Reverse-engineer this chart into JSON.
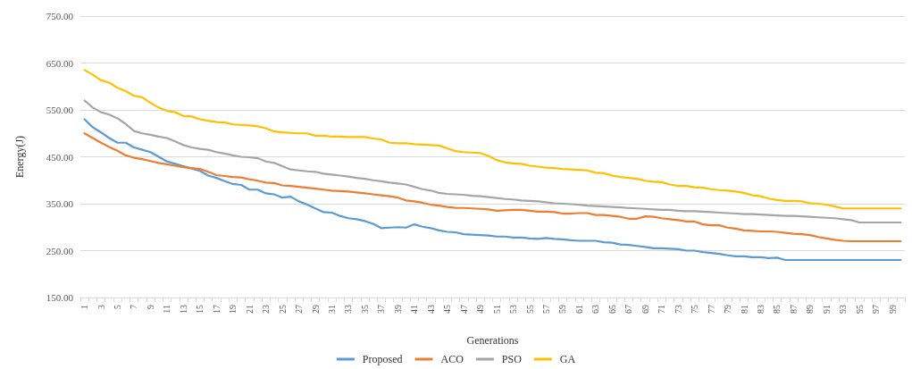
{
  "chart_data": {
    "type": "line",
    "xlabel": "Generations",
    "ylabel": "Energy(J)",
    "categories": [
      "1",
      null,
      "3",
      null,
      "5",
      null,
      "7",
      null,
      "9",
      null,
      "11",
      null,
      "13",
      null,
      "15",
      null,
      "17",
      null,
      "19",
      null,
      "21",
      null,
      "23",
      null,
      "25",
      null,
      "27",
      null,
      "29",
      null,
      "31",
      null,
      "33",
      null,
      "35",
      null,
      "37",
      null,
      "39",
      null,
      "41",
      null,
      "43",
      null,
      "45",
      null,
      "47",
      null,
      "49",
      null,
      "51",
      null,
      "53",
      null,
      "55",
      null,
      "57",
      null,
      "59",
      null,
      "61",
      null,
      "63",
      null,
      "65",
      null,
      "67",
      null,
      "69",
      null,
      "71",
      null,
      "73",
      null,
      "75",
      null,
      "77",
      null,
      "79",
      null,
      "81",
      null,
      "83",
      null,
      "85",
      null,
      "87",
      null,
      "89",
      null,
      "91",
      null,
      "93",
      null,
      "95",
      null,
      "97",
      null,
      "99",
      null
    ],
    "series": [
      {
        "name": "Proposed",
        "color": "#5b9bd5",
        "values": [
          530,
          513,
          502,
          490,
          480,
          480,
          470,
          465,
          460,
          450,
          440,
          435,
          430,
          425,
          420,
          410,
          405,
          398,
          392,
          390,
          380,
          380,
          372,
          370,
          363,
          365,
          355,
          348,
          340,
          332,
          331,
          324,
          319,
          317,
          313,
          307,
          298,
          299,
          300,
          299,
          306,
          301,
          298,
          293,
          290,
          289,
          285,
          284,
          283,
          282,
          280,
          280,
          278,
          278,
          276,
          275,
          277,
          275,
          274,
          272,
          271,
          271,
          271,
          268,
          267,
          263,
          262,
          260,
          258,
          255,
          255,
          254,
          253,
          250,
          250,
          247,
          245,
          243,
          240,
          238,
          238,
          236,
          236,
          234,
          235,
          230,
          230,
          230,
          230,
          230,
          230,
          230,
          230,
          230,
          230,
          230,
          230,
          230,
          230,
          230
        ]
      },
      {
        "name": "ACO",
        "color": "#ed7d31",
        "values": [
          500,
          490,
          480,
          471,
          463,
          453,
          448,
          445,
          441,
          437,
          434,
          431,
          428,
          426,
          424,
          418,
          411,
          409,
          407,
          406,
          402,
          399,
          395,
          394,
          389,
          388,
          386,
          384,
          382,
          380,
          378,
          377,
          376,
          374,
          372,
          370,
          368,
          366,
          363,
          357,
          355,
          352,
          348,
          346,
          343,
          341,
          341,
          340,
          339,
          338,
          335,
          336,
          337,
          337,
          335,
          333,
          333,
          332,
          329,
          329,
          330,
          330,
          326,
          326,
          324,
          322,
          318,
          318,
          323,
          322,
          319,
          317,
          315,
          312,
          312,
          306,
          304,
          304,
          299,
          297,
          293,
          292,
          291,
          291,
          290,
          288,
          286,
          285,
          283,
          279,
          276,
          273,
          271,
          270,
          270,
          270,
          270,
          270,
          270,
          270
        ]
      },
      {
        "name": "PSO",
        "color": "#a5a5a5",
        "values": [
          570,
          555,
          545,
          540,
          532,
          520,
          505,
          500,
          497,
          493,
          490,
          483,
          475,
          470,
          467,
          465,
          460,
          457,
          453,
          450,
          449,
          447,
          440,
          437,
          430,
          423,
          421,
          419,
          418,
          414,
          412,
          410,
          408,
          405,
          403,
          400,
          398,
          395,
          393,
          391,
          386,
          381,
          378,
          373,
          371,
          370,
          369,
          367,
          366,
          364,
          362,
          360,
          359,
          357,
          356,
          355,
          353,
          351,
          350,
          349,
          348,
          346,
          345,
          344,
          343,
          342,
          341,
          340,
          339,
          338,
          337,
          337,
          335,
          334,
          334,
          333,
          332,
          331,
          330,
          329,
          328,
          328,
          327,
          326,
          325,
          324,
          324,
          323,
          322,
          321,
          320,
          319,
          317,
          315,
          310,
          310,
          310,
          310,
          310,
          310
        ]
      },
      {
        "name": "GA",
        "color": "#ffc000",
        "values": [
          635,
          625,
          613,
          608,
          597,
          590,
          580,
          577,
          565,
          555,
          548,
          545,
          537,
          536,
          530,
          527,
          524,
          523,
          519,
          518,
          517,
          515,
          511,
          504,
          502,
          501,
          500,
          500,
          495,
          495,
          493,
          493,
          492,
          492,
          492,
          489,
          487,
          480,
          479,
          479,
          477,
          476,
          475,
          474,
          468,
          462,
          460,
          459,
          458,
          452,
          443,
          438,
          436,
          435,
          431,
          429,
          427,
          426,
          424,
          423,
          422,
          421,
          416,
          415,
          410,
          407,
          405,
          403,
          399,
          397,
          396,
          391,
          388,
          388,
          385,
          384,
          381,
          379,
          378,
          376,
          373,
          368,
          366,
          361,
          358,
          356,
          356,
          355,
          351,
          350,
          348,
          344,
          340,
          340,
          340,
          340,
          340,
          340,
          340,
          340
        ]
      }
    ],
    "ylim": [
      150,
      750
    ],
    "yticks": [
      {
        "value": 150,
        "label": "150.00"
      },
      {
        "value": 250,
        "label": "250.00"
      },
      {
        "value": 350,
        "label": "350.00"
      },
      {
        "value": 450,
        "label": "450.00"
      },
      {
        "value": 550,
        "label": "550.00"
      },
      {
        "value": 650,
        "label": "650.00"
      },
      {
        "value": 750,
        "label": "750.00"
      }
    ],
    "grid": "y",
    "legend": "bottom",
    "marker": "none",
    "line_style": "solid"
  }
}
